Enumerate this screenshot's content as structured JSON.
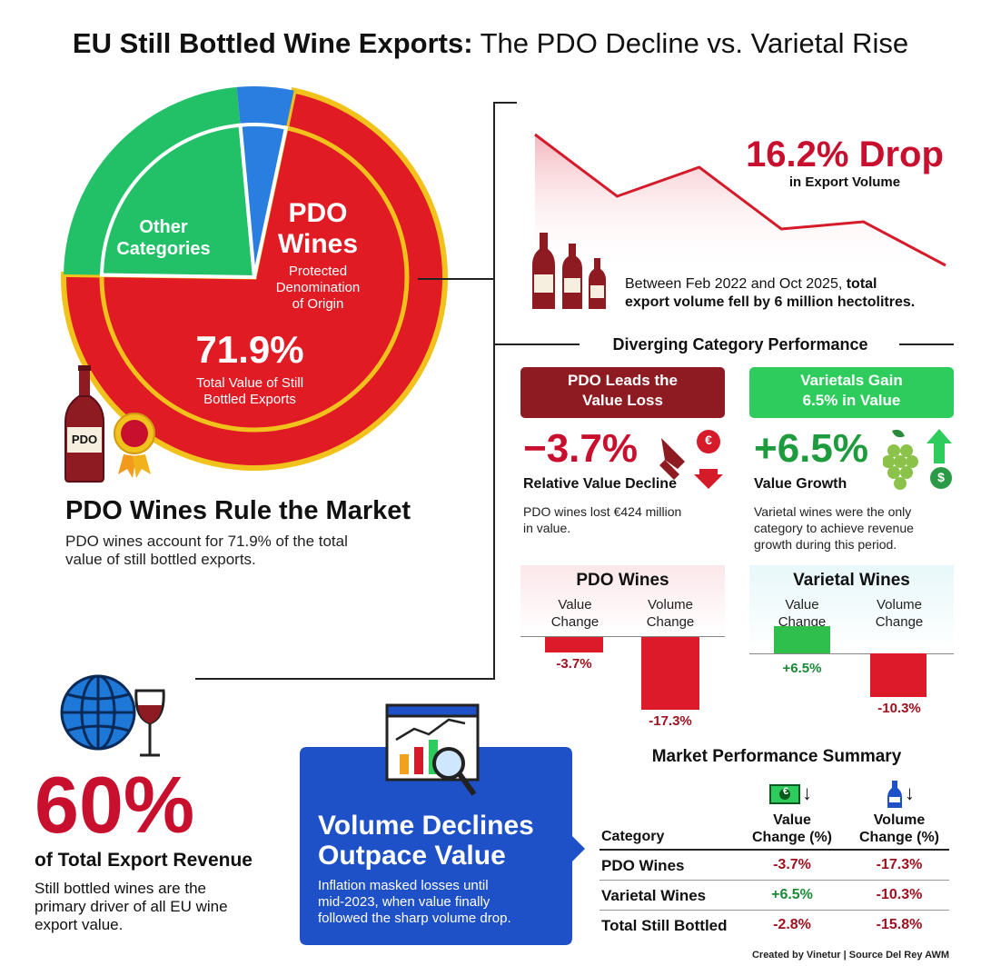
{
  "title": {
    "bold": "EU Still Bottled Wine Exports:",
    "rest": " The PDO Decline vs. Varietal Rise"
  },
  "colors": {
    "pdo_red": "#e01b24",
    "other_green": "#22c168",
    "blue": "#2a7ee0",
    "gold": "#f2c21c",
    "dark_red": "#8e1a22",
    "green": "#2ecc5c",
    "panel_blue": "#1e50c8"
  },
  "chart_data": [
    {
      "type": "pie",
      "labels": [
        "PDO Wines",
        "Other Categories",
        "Blue segment"
      ],
      "values": [
        71.9,
        23.3,
        4.8
      ],
      "title": "",
      "annotations": [
        "PDO",
        "Wines",
        "Protected Denomination of Origin",
        "71.9%",
        "Total Value of Still Bottled Exports",
        "Other Categories"
      ]
    },
    {
      "type": "line",
      "x": [
        1,
        2,
        3,
        4,
        5,
        6
      ],
      "values": [
        100,
        83,
        91,
        74,
        76,
        64
      ],
      "title": "",
      "xlabel": "",
      "ylabel": ""
    },
    {
      "type": "bar",
      "title": "PDO Wines",
      "categories": [
        "Value Change",
        "Volume Change"
      ],
      "values": [
        -3.7,
        -17.3
      ],
      "ylim": [
        -17.3,
        0
      ]
    },
    {
      "type": "bar",
      "title": "Varietal Wines",
      "categories": [
        "Value Change",
        "Volume Change"
      ],
      "values": [
        6.5,
        -10.3
      ],
      "ylim": [
        -10.3,
        6.5
      ]
    },
    {
      "type": "table",
      "title": "Market Performance Summary",
      "columns": [
        "Category",
        "Value Change (%)",
        "Volume Change (%)"
      ],
      "rows": [
        [
          "PDO Wines",
          "-3.7%",
          "-17.3%"
        ],
        [
          "Varietal Wines",
          "+6.5%",
          "-10.3%"
        ],
        [
          "Total Still Bottled",
          "-2.8%",
          "-15.8%"
        ]
      ]
    }
  ],
  "pie": {
    "pdo_title_1": "PDO",
    "pdo_title_2": "Wines",
    "pdo_sub_1": "Protected",
    "pdo_sub_2": "Denomination",
    "pdo_sub_3": "of Origin",
    "pct": "71.9%",
    "pct_sub_1": "Total Value of Still",
    "pct_sub_2": "Bottled Exports",
    "other_1": "Other",
    "other_2": "Categories",
    "bottle_label": "PDO"
  },
  "rule": {
    "heading": "PDO Wines Rule the Market",
    "text_1": "PDO wines account for 71.9% of the total",
    "text_2": "value of still bottled exports."
  },
  "drop": {
    "big": "16.2% Drop",
    "sub": "in Export Volume",
    "desc_1_plain": "Between Feb 2022 and Oct 2025,",
    "desc_1_bold": " total",
    "desc_2": "export volume fell by 6 million hectolitres."
  },
  "diverging": {
    "heading": "Diverging Category Performance",
    "pdo_hdr_1": "PDO Leads the",
    "pdo_hdr_2": "Value Loss",
    "var_hdr_1": "Varietals Gain",
    "var_hdr_2": "6.5% in Value",
    "pdo_big": "−3.7%",
    "pdo_big_sub": "Relative Value Decline",
    "pdo_text_1": "PDO wines lost €424 million",
    "pdo_text_2": "in value.",
    "var_big": "+6.5%",
    "var_big_sub": "Value Growth",
    "var_text_1": "Varietal wines were the only",
    "var_text_2": "category to achieve revenue",
    "var_text_3": "growth during this period.",
    "euro_symbol": "€",
    "dollar_symbol": "$"
  },
  "mini_pdo": {
    "title": "PDO Wines",
    "lbl_value_1": "Value",
    "lbl_value_2": "Change",
    "lbl_volume_1": "Volume",
    "lbl_volume_2": "Change",
    "val_value": "-3.7%",
    "val_volume": "-17.3%"
  },
  "mini_var": {
    "title": "Varietal Wines",
    "lbl_value_1": "Value",
    "lbl_value_2": "Change",
    "lbl_volume_1": "Volume",
    "lbl_volume_2": "Change",
    "val_value": "+6.5%",
    "val_volume": "-10.3%"
  },
  "revenue": {
    "big": "60%",
    "sub": "of Total Export Revenue",
    "text_1": "Still bottled wines are the",
    "text_2": "primary driver of all EU wine",
    "text_3": "export value."
  },
  "volume_box": {
    "title_1": "Volume Declines",
    "title_2": "Outpace Value",
    "text_1": "Inflation masked losses until",
    "text_2": "mid-2023, when value finally",
    "text_3": "followed the sharp volume drop."
  },
  "summary": {
    "title": "Market Performance Summary",
    "col_category": "Category",
    "col_value_1": "Value",
    "col_value_2": "Change (%)",
    "col_volume_1": "Volume",
    "col_volume_2": "Change (%)",
    "row1_name": "PDO Wines",
    "row1_value": "-3.7%",
    "row1_volume": "-17.3%",
    "row2_name": "Varietal Wines",
    "row2_value": "+6.5%",
    "row2_volume": "-10.3%",
    "row3_name": "Total Still Bottled",
    "row3_value": "-2.8%",
    "row3_volume": "-15.8%",
    "money_symbol": "€",
    "arrow": "↓"
  },
  "footer": "Created by Vinetur | Source Del Rey AWM"
}
